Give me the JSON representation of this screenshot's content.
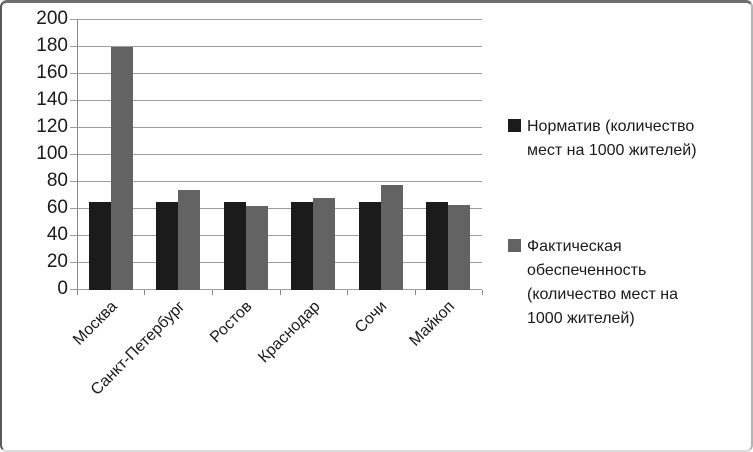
{
  "chart_data": {
    "type": "bar",
    "title": "",
    "xlabel": "",
    "ylabel": "",
    "categories": [
      "Москва",
      "Санкт-Петербург",
      "Ростов",
      "Краснодар",
      "Сочи",
      "Майкоп"
    ],
    "series": [
      {
        "name": "Норматив (количество мест на 1000 жителей)",
        "legend_label": "Норматив (количество\nмест на 1000 жителей)",
        "color": "#1b1b1b",
        "values": [
          65,
          65,
          65,
          65,
          65,
          65
        ]
      },
      {
        "name": "Фактическая обеспеченность (количество мест на 1000 жителей)",
        "legend_label": "Фактическая\nобеспеченность\n(количество мест на\n1000 жителей)",
        "color": "#636363",
        "values": [
          180,
          74,
          62,
          68,
          78,
          63
        ]
      }
    ],
    "ylim": [
      0,
      200
    ],
    "ytick_step": 20,
    "ytick_labels": [
      "0",
      "20",
      "40",
      "60",
      "80",
      "100",
      "120",
      "140",
      "160",
      "180",
      "200"
    ],
    "grid": true,
    "legend_position": "right",
    "x_label_rotation_deg": 45
  },
  "colors": {
    "background": "#ffffff",
    "border": "#5a5a5a",
    "gridline": "#9e9e9e",
    "axis": "#8a8a8a",
    "text": "#1a1a1a",
    "series_normativ": "#1b1b1b",
    "series_fact": "#636363"
  }
}
